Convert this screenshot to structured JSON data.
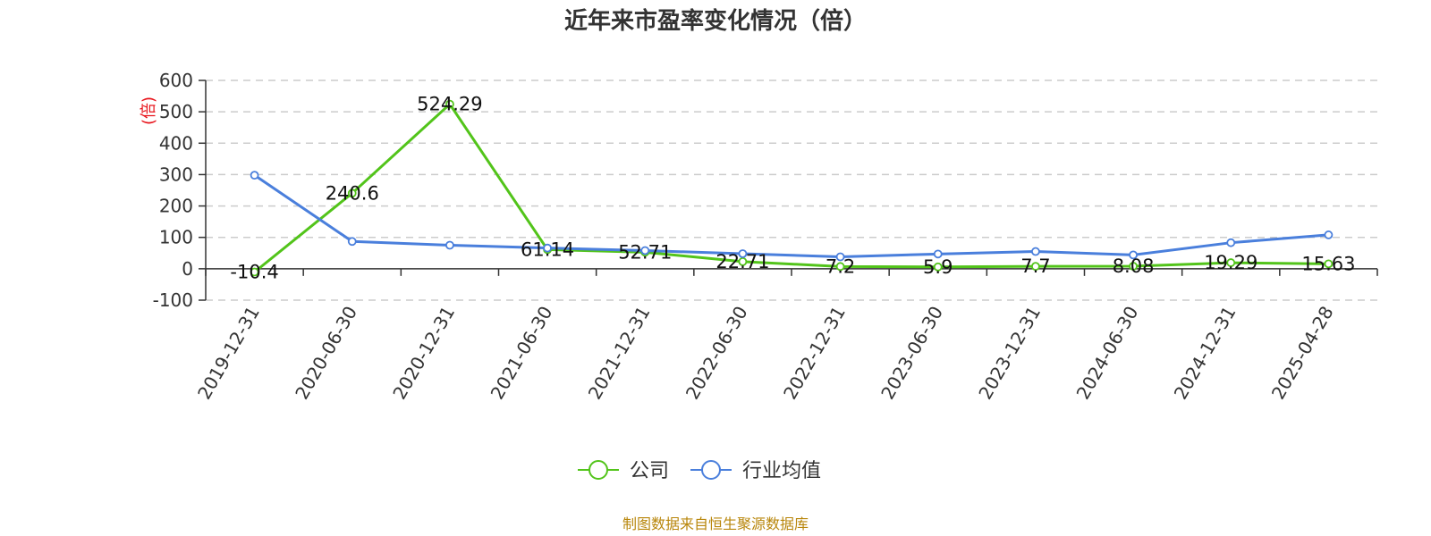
{
  "chart_data": {
    "type": "line",
    "title": "近年来市盈率变化情况（倍）",
    "ylabel": "(倍)",
    "ylim": [
      -100,
      600
    ],
    "yticks": [
      600,
      500,
      400,
      300,
      200,
      100,
      0,
      -100
    ],
    "grid": true,
    "legend_position": "bottom-center",
    "categories": [
      "2019-12-31",
      "2020-06-30",
      "2020-12-31",
      "2021-06-30",
      "2021-12-31",
      "2022-06-30",
      "2022-12-31",
      "2023-06-30",
      "2023-12-31",
      "2024-06-30",
      "2024-12-31",
      "2025-04-28"
    ],
    "series": [
      {
        "name": "公司",
        "color": "#52c41a",
        "values": [
          -10.4,
          240.6,
          524.29,
          61.14,
          52.71,
          22.71,
          7.2,
          5.9,
          7.7,
          8.08,
          19.29,
          15.63
        ],
        "data_labels": [
          "-10.4",
          "240.6",
          "524.29",
          "61.14",
          "52.71",
          "22.71",
          "7.2",
          "5.9",
          "7.7",
          "8.08",
          "19.29",
          "15.63"
        ]
      },
      {
        "name": "行业均值",
        "color": "#4a7fdc",
        "values": [
          298,
          87,
          75,
          66,
          58,
          48,
          38,
          47,
          55,
          44,
          83,
          108
        ]
      }
    ],
    "source": "制图数据来自恒生聚源数据库"
  }
}
